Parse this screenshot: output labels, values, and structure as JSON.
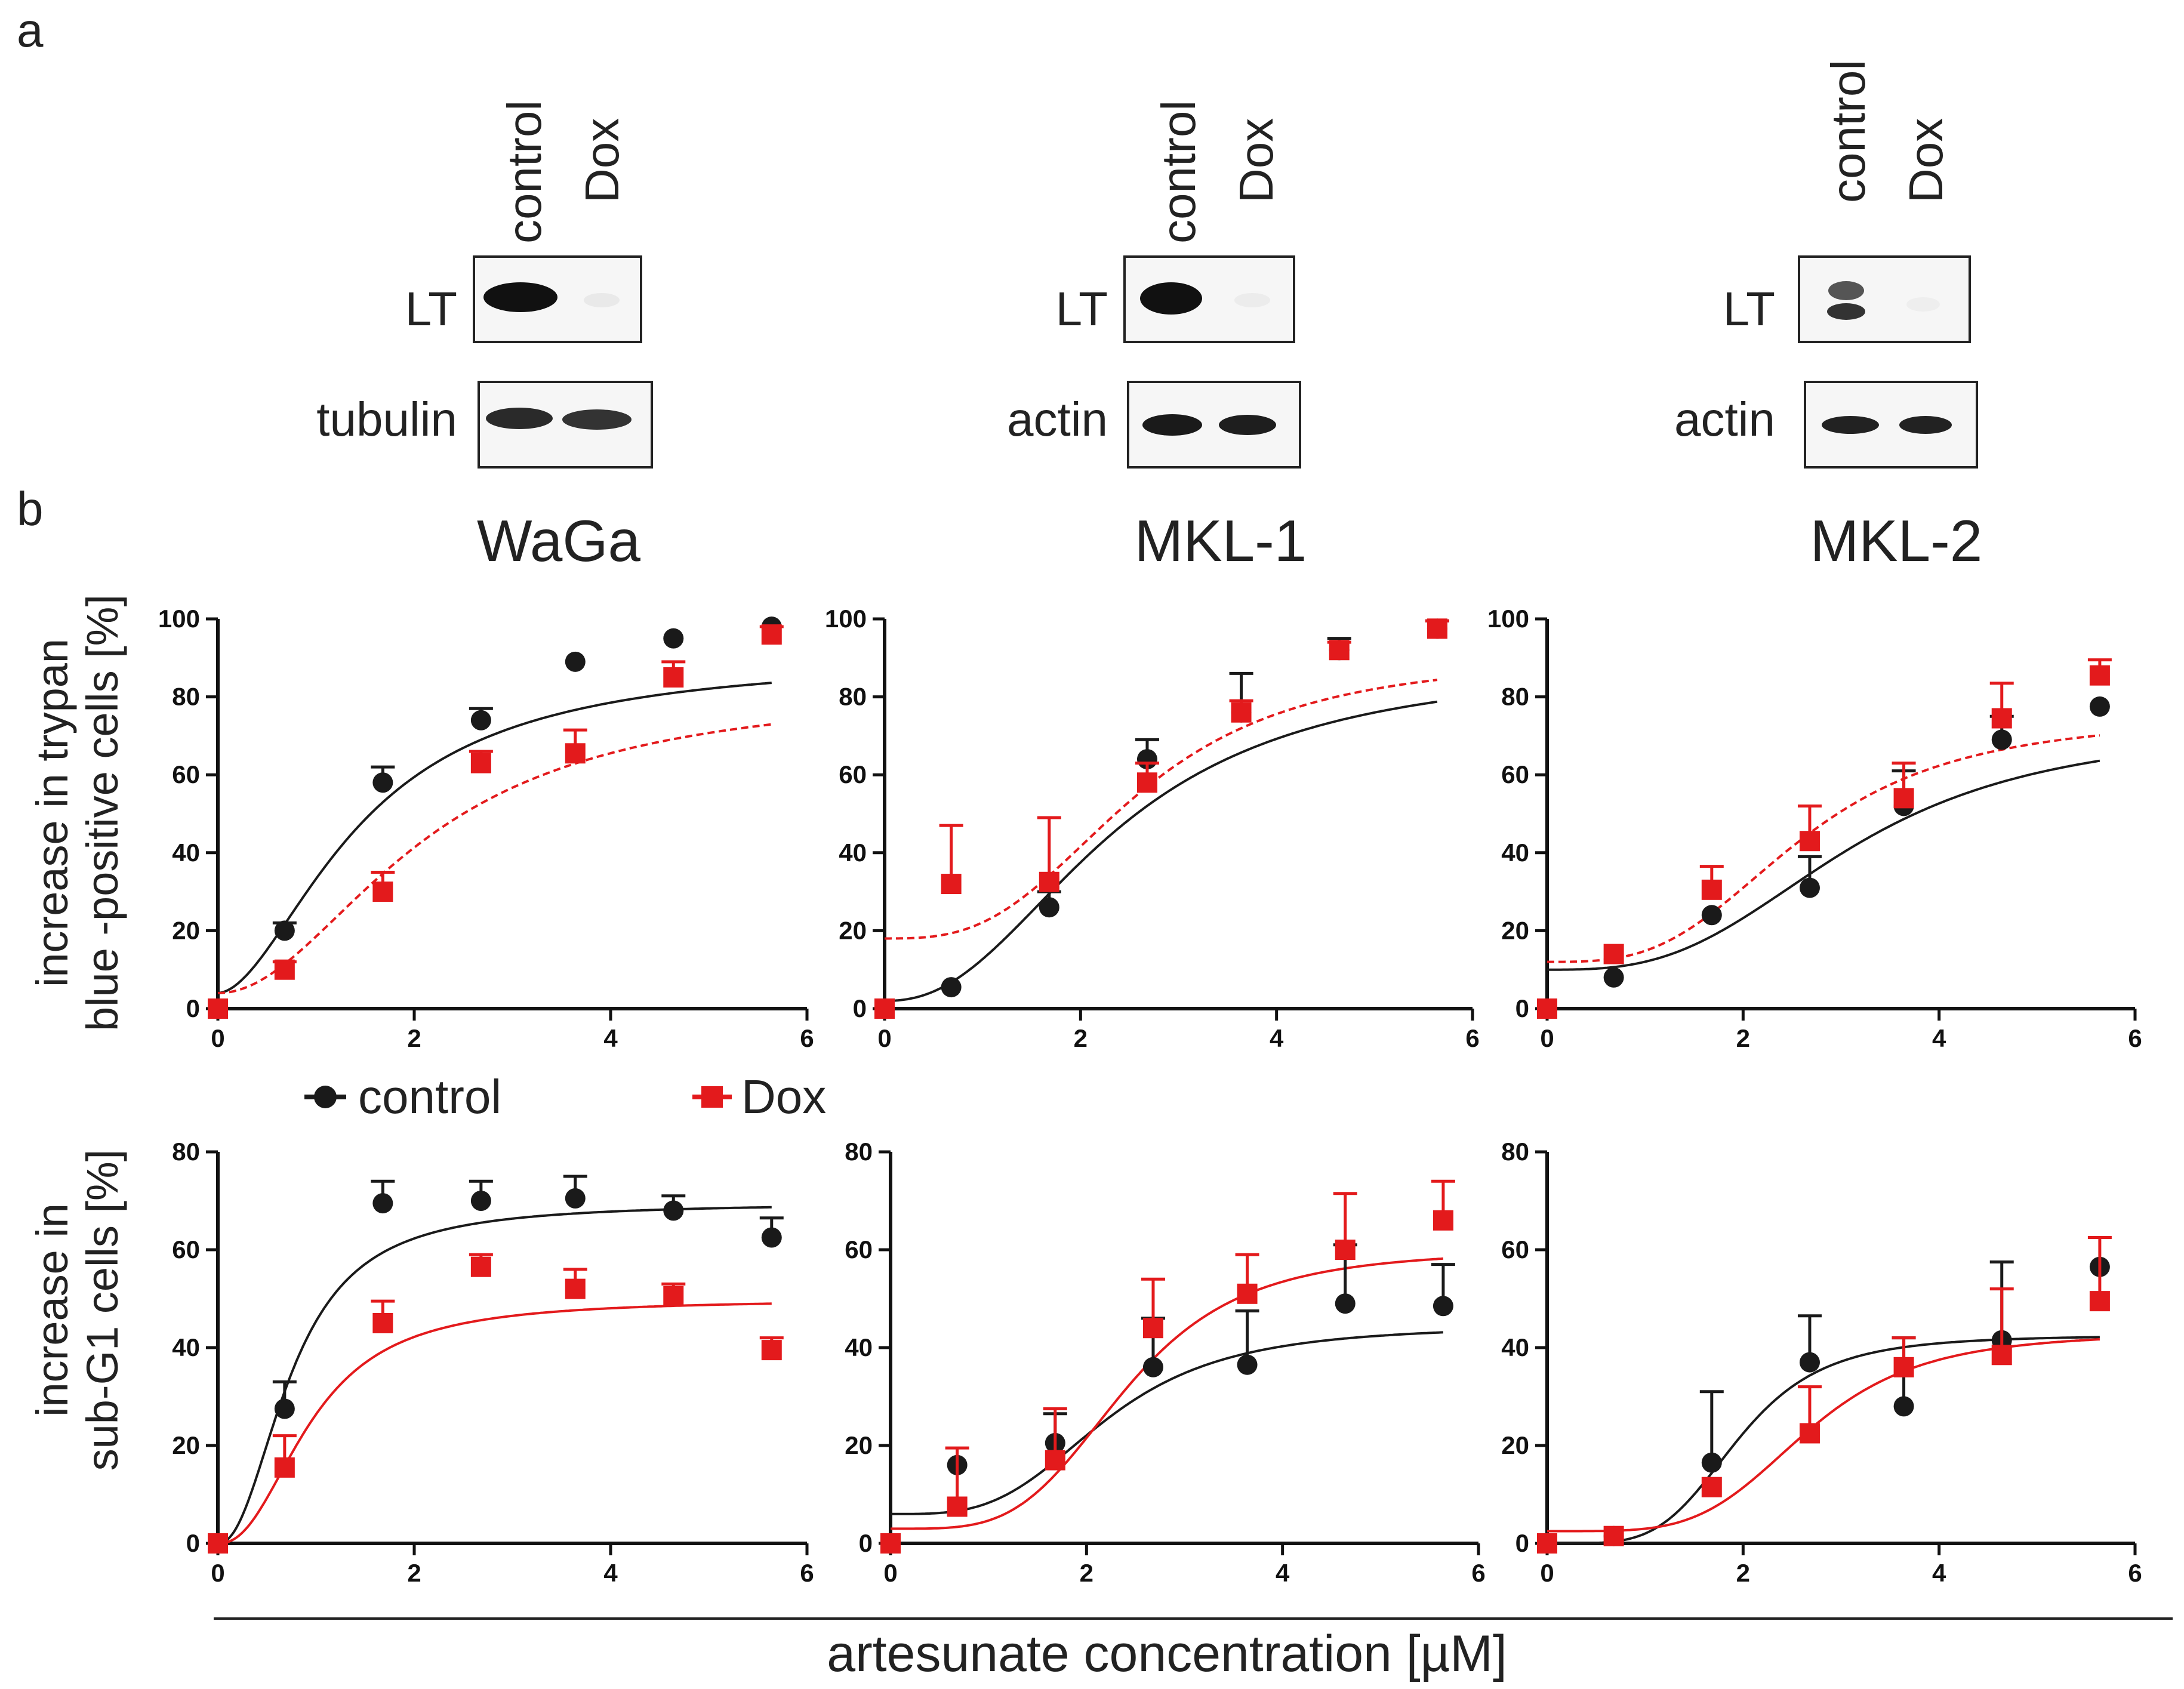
{
  "panel_labels": {
    "a": "a",
    "b": "b"
  },
  "blots": [
    {
      "cell_line": "WaGa",
      "lanes": [
        "control",
        "Dox"
      ],
      "rows": [
        "LT",
        "tubulin"
      ]
    },
    {
      "cell_line": "MKL-1",
      "lanes": [
        "control",
        "Dox"
      ],
      "rows": [
        "LT",
        "actin"
      ]
    },
    {
      "cell_line": "MKL-2",
      "lanes": [
        "control",
        "Dox"
      ],
      "rows": [
        "LT",
        "actin"
      ]
    }
  ],
  "titles": [
    "WaGa",
    "MKL-1",
    "MKL-2"
  ],
  "y_labels": {
    "top": [
      "increase in trypan",
      "blue -positive cells [%]"
    ],
    "bottom": [
      "increase in",
      "sub-G1 cells [%]"
    ]
  },
  "x_label": "artesunate concentration [µM]",
  "legend": {
    "control": "control",
    "dox": "Dox"
  },
  "colors": {
    "control": "#1a1a1a",
    "dox": "#e31a1c"
  },
  "chart_data": [
    {
      "type": "scatter",
      "title": "WaGa",
      "xlim": [
        0,
        6
      ],
      "ylim": [
        0,
        100
      ],
      "xticks": [
        0,
        2,
        4,
        6
      ],
      "yticks": [
        0,
        20,
        40,
        60,
        80,
        100
      ],
      "x": [
        0,
        0.68,
        1.68,
        2.68,
        3.64,
        4.64,
        5.64
      ],
      "series": [
        {
          "name": "control",
          "values": [
            0,
            20,
            58,
            74,
            89,
            95,
            98
          ],
          "errors": [
            0,
            2,
            4,
            3,
            0,
            0,
            0
          ],
          "fit": {
            "bottom": 4,
            "top": 90.5,
            "ec50": 1.45,
            "hill": 1.8
          }
        },
        {
          "name": "Dox",
          "values": [
            0,
            10,
            30,
            63,
            65.5,
            85,
            96
          ],
          "errors": [
            0,
            2,
            5,
            3,
            6,
            4,
            2
          ],
          "fit": {
            "bottom": 4,
            "top": 82.5,
            "ec50": 2.1,
            "hill": 2.0
          }
        }
      ]
    },
    {
      "type": "scatter",
      "title": "MKL-1",
      "xlim": [
        0,
        6
      ],
      "ylim": [
        0,
        100
      ],
      "xticks": [
        0,
        2,
        4,
        6
      ],
      "yticks": [
        0,
        20,
        40,
        60,
        80,
        100
      ],
      "x": [
        0,
        0.68,
        1.68,
        2.68,
        3.64,
        4.64,
        5.64
      ],
      "series": [
        {
          "name": "control",
          "values": [
            0,
            5.5,
            26,
            64,
            76,
            92,
            97.5
          ],
          "errors": [
            0,
            0,
            4,
            5,
            10,
            3,
            2
          ],
          "fit": {
            "bottom": 2,
            "top": 89,
            "ec50": 2.35,
            "hill": 2.3
          }
        },
        {
          "name": "Dox",
          "values": [
            0,
            32,
            32.5,
            58,
            76,
            92,
            97.5
          ],
          "errors": [
            0,
            15,
            16.5,
            5,
            3,
            2,
            2
          ],
          "fit": {
            "bottom": 18,
            "top": 90.5,
            "ec50": 2.55,
            "hill": 3.0
          }
        }
      ]
    },
    {
      "type": "scatter",
      "title": "MKL-2",
      "xlim": [
        0,
        6
      ],
      "ylim": [
        0,
        100
      ],
      "xticks": [
        0,
        2,
        4,
        6
      ],
      "yticks": [
        0,
        20,
        40,
        60,
        80,
        100
      ],
      "x": [
        0,
        0.68,
        1.68,
        2.68,
        3.64,
        4.64,
        5.64
      ],
      "series": [
        {
          "name": "control",
          "values": [
            0,
            8,
            24,
            31,
            52,
            69,
            77.5
          ],
          "errors": [
            0,
            0,
            0,
            8,
            9,
            6,
            0
          ],
          "fit": {
            "bottom": 10,
            "top": 72.5,
            "ec50": 3.1,
            "hill": 3.0
          }
        },
        {
          "name": "Dox",
          "values": [
            0,
            14,
            30.5,
            43,
            54,
            74.5,
            85.5
          ],
          "errors": [
            0,
            0,
            6,
            9,
            9,
            9,
            4
          ],
          "fit": {
            "bottom": 12,
            "top": 75,
            "ec50": 2.6,
            "hill": 3.2
          }
        }
      ]
    },
    {
      "type": "scatter",
      "title": "WaGa",
      "xlim": [
        0,
        6
      ],
      "ylim": [
        0,
        80
      ],
      "xticks": [
        0,
        2,
        4,
        6
      ],
      "yticks": [
        0,
        20,
        40,
        60,
        80
      ],
      "x": [
        0,
        0.68,
        1.68,
        2.68,
        3.64,
        4.64,
        5.64
      ],
      "series": [
        {
          "name": "control",
          "values": [
            0,
            27.5,
            69.5,
            70,
            70.5,
            68,
            62.5
          ],
          "errors": [
            0,
            5.5,
            4.5,
            4,
            4.5,
            3,
            4
          ],
          "fit": {
            "bottom": 0,
            "top": 69.5,
            "ec50": 0.75,
            "hill": 2.2
          }
        },
        {
          "name": "Dox",
          "values": [
            0,
            15.5,
            45,
            56.5,
            52,
            50.5,
            39.5
          ],
          "errors": [
            0,
            6.5,
            4.5,
            2.5,
            4,
            2.5,
            2.5
          ],
          "fit": {
            "bottom": 0,
            "top": 49.8,
            "ec50": 0.95,
            "hill": 2.3
          }
        }
      ]
    },
    {
      "type": "scatter",
      "title": "MKL-1",
      "xlim": [
        0,
        6
      ],
      "ylim": [
        0,
        80
      ],
      "xticks": [
        0,
        2,
        4,
        6
      ],
      "yticks": [
        0,
        20,
        40,
        60,
        80
      ],
      "x": [
        0,
        0.68,
        1.68,
        2.68,
        3.64,
        4.64,
        5.64
      ],
      "series": [
        {
          "name": "control",
          "values": [
            0,
            16,
            20.5,
            36,
            36.5,
            49,
            48.5
          ],
          "errors": [
            0,
            0,
            6,
            10,
            11,
            12,
            8.5
          ],
          "fit": {
            "bottom": 6,
            "top": 44.5,
            "ec50": 2.2,
            "hill": 3.5
          }
        },
        {
          "name": "Dox",
          "values": [
            0,
            7.5,
            17,
            44,
            51,
            60,
            66
          ],
          "errors": [
            0,
            12,
            10.5,
            10,
            8,
            11.5,
            8
          ],
          "fit": {
            "bottom": 3,
            "top": 60,
            "ec50": 2.4,
            "hill": 4.0
          }
        }
      ]
    },
    {
      "type": "scatter",
      "title": "MKL-2",
      "xlim": [
        0,
        6
      ],
      "ylim": [
        0,
        80
      ],
      "xticks": [
        0,
        2,
        4,
        6
      ],
      "yticks": [
        0,
        20,
        40,
        60,
        80
      ],
      "x": [
        0,
        0.68,
        1.68,
        2.68,
        3.64,
        4.64,
        5.64
      ],
      "series": [
        {
          "name": "control",
          "values": [
            0,
            1.5,
            16.5,
            37,
            28,
            41.5,
            56.5
          ],
          "errors": [
            0,
            0,
            14.5,
            9.5,
            14,
            16,
            0
          ],
          "fit": {
            "bottom": 0,
            "top": 42.5,
            "ec50": 1.95,
            "hill": 4.5
          }
        },
        {
          "name": "Dox",
          "values": [
            0,
            1.5,
            11.5,
            22.5,
            36,
            38.5,
            49.5
          ],
          "errors": [
            0,
            0,
            0,
            9.5,
            6,
            13.5,
            13
          ],
          "fit": {
            "bottom": 2.5,
            "top": 43,
            "ec50": 2.65,
            "hill": 4.5
          }
        }
      ]
    }
  ]
}
